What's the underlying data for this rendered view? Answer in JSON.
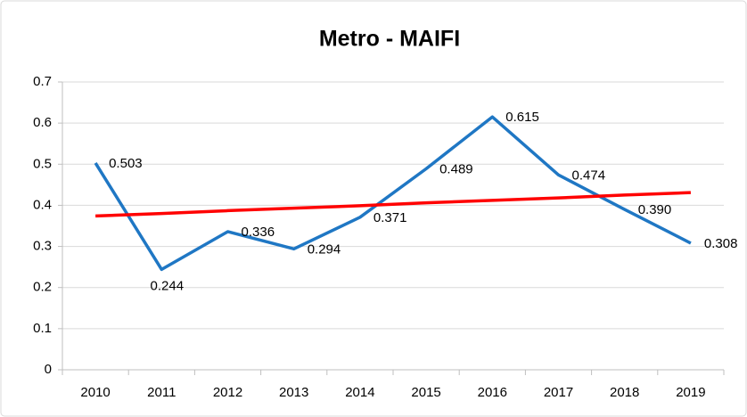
{
  "chart_data": {
    "type": "line",
    "title": "Metro - MAIFI",
    "categories": [
      "2010",
      "2011",
      "2012",
      "2013",
      "2014",
      "2015",
      "2016",
      "2017",
      "2018",
      "2019"
    ],
    "series": [
      {
        "color": "#1f77c4",
        "values": [
          0.503,
          0.244,
          0.336,
          0.294,
          0.371,
          0.489,
          0.615,
          0.474,
          0.39,
          0.308
        ],
        "value_labels": [
          "0.503",
          "0.244",
          "0.336",
          "0.294",
          "0.371",
          "0.489",
          "0.615",
          "0.474",
          "0.390",
          "0.308"
        ]
      },
      {
        "color": "#ff0000",
        "values": [
          0.374,
          0.38,
          0.387,
          0.393,
          0.399,
          0.406,
          0.412,
          0.418,
          0.425,
          0.431
        ]
      }
    ],
    "ylim": [
      0,
      0.7
    ],
    "yticks": [
      0,
      0.1,
      0.2,
      0.3,
      0.4,
      0.5,
      0.6,
      0.7
    ],
    "grid": true
  }
}
